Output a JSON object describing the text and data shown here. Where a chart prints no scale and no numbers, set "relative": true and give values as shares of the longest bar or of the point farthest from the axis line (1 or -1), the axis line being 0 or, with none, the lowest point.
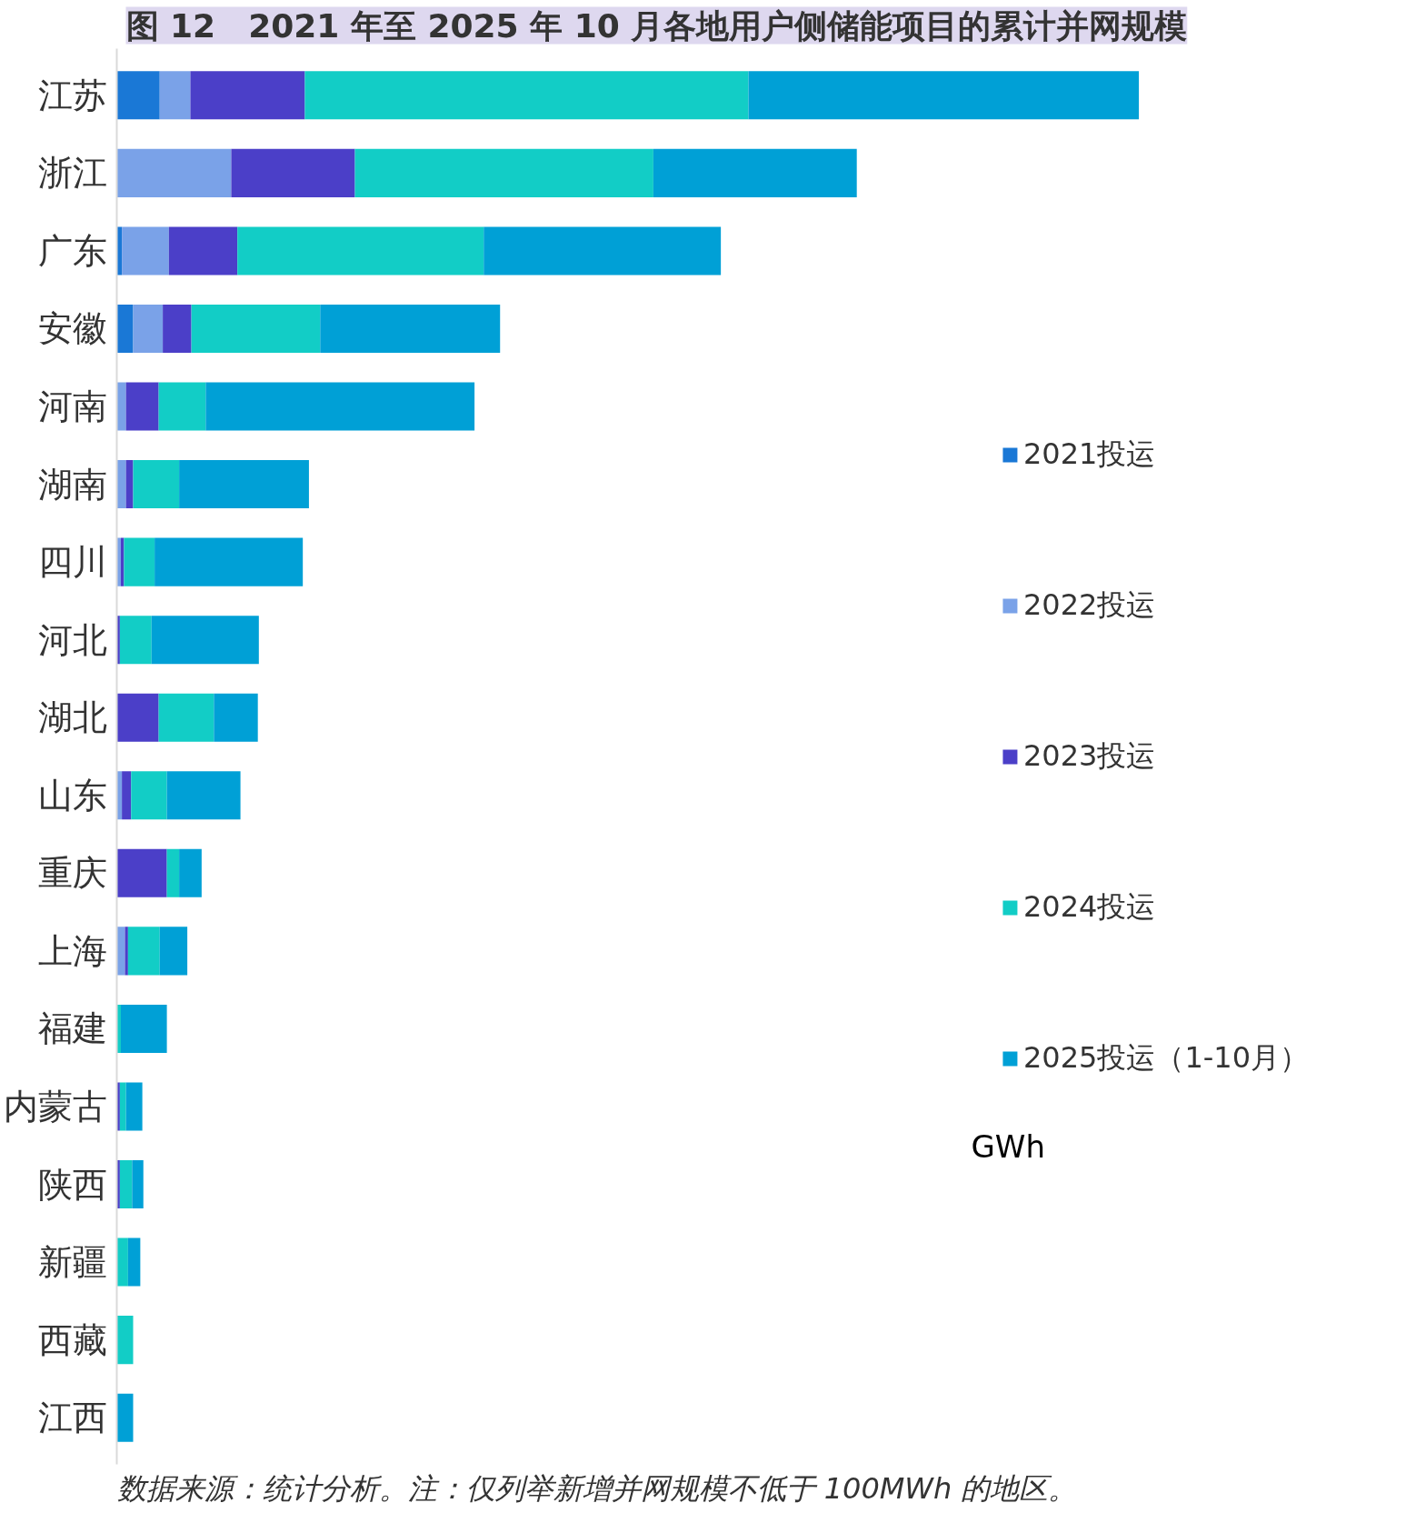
{
  "chart_data": {
    "type": "bar",
    "orientation": "horizontal",
    "stacked": true,
    "relative": true,
    "title": "图 12　2021 年至 2025 年 10 月各地用户侧储能项目的累计并网规模",
    "categories": [
      "江苏",
      "浙江",
      "广东",
      "安徽",
      "河南",
      "湖南",
      "四川",
      "河北",
      "湖北",
      "山东",
      "重庆",
      "上海",
      "福建",
      "内蒙古",
      "陕西",
      "新疆",
      "西藏",
      "江西"
    ],
    "series": [
      {
        "name": "2021投运",
        "color": "#1a78d6",
        "values": [
          0.042,
          0,
          0.005,
          0.016,
          0,
          0,
          0,
          0,
          0,
          0,
          0,
          0,
          0,
          0,
          0,
          0,
          0,
          0
        ]
      },
      {
        "name": "2022投运",
        "color": "#7aa2e8",
        "values": [
          0.03,
          0.112,
          0.046,
          0.029,
          0.009,
          0.009,
          0.004,
          0,
          0,
          0.005,
          0,
          0.008,
          0,
          0,
          0,
          0,
          0,
          0
        ]
      },
      {
        "name": "2023投运",
        "color": "#4b3fc8",
        "values": [
          0.112,
          0.121,
          0.067,
          0.028,
          0.032,
          0.007,
          0.003,
          0.003,
          0.041,
          0.009,
          0.049,
          0.003,
          0,
          0.003,
          0.003,
          0,
          0,
          0
        ]
      },
      {
        "name": "2024投运",
        "color": "#12cdc6",
        "values": [
          0.434,
          0.292,
          0.241,
          0.126,
          0.046,
          0.045,
          0.03,
          0.031,
          0.054,
          0.035,
          0.012,
          0.031,
          0.004,
          0.006,
          0.012,
          0.011,
          0.016,
          0
        ]
      },
      {
        "name": "2025投运（1-10月）",
        "color": "#00a0d6",
        "values": [
          0.382,
          0.199,
          0.232,
          0.176,
          0.263,
          0.127,
          0.145,
          0.105,
          0.043,
          0.072,
          0.022,
          0.027,
          0.045,
          0.016,
          0.011,
          0.012,
          0,
          0.016
        ]
      }
    ],
    "legend": "right",
    "grid": false,
    "annotations": [
      "GWh",
      "数据来源：统计分析。注：仅列举新增并网规模不低于 100MWh 的地区。"
    ]
  }
}
